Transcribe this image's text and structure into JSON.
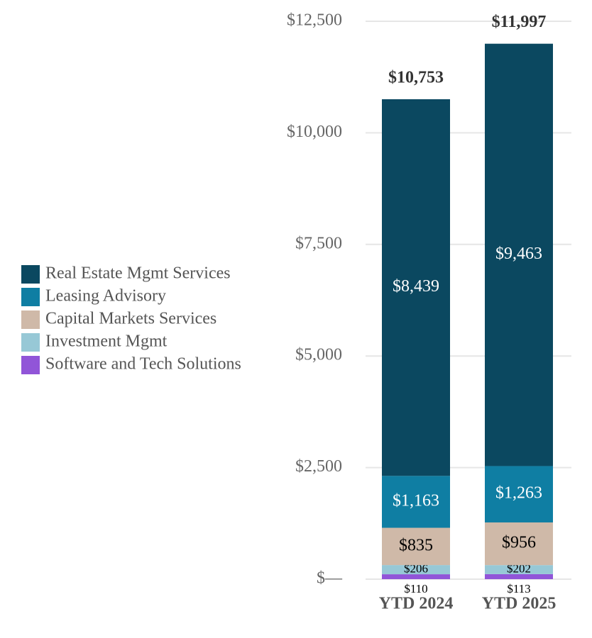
{
  "chart_data": {
    "type": "stacked_bar",
    "categories": [
      "YTD 2024",
      "YTD 2025"
    ],
    "series": [
      {
        "name": "Real Estate Mgmt Services",
        "color": "#0b4860",
        "label_color": "#ffffff",
        "values": [
          8439,
          9463
        ],
        "value_labels": [
          "$8,439",
          "$9,463"
        ]
      },
      {
        "name": "Leasing Advisory",
        "color": "#0f7ea3",
        "label_color": "#ffffff",
        "values": [
          1163,
          1263
        ],
        "value_labels": [
          "$1,163",
          "$1,263"
        ]
      },
      {
        "name": "Capital Markets Services",
        "color": "#cfb9a8",
        "label_color": "#000000",
        "values": [
          835,
          956
        ],
        "value_labels": [
          "$835",
          "$956"
        ]
      },
      {
        "name": "Investment Mgmt",
        "color": "#97c8d6",
        "label_color": "#000000",
        "values": [
          206,
          202
        ],
        "value_labels": [
          "$206",
          "$202"
        ]
      },
      {
        "name": "Software and Tech Solutions",
        "color": "#9155d8",
        "label_color": "#000000",
        "values": [
          110,
          113
        ],
        "value_labels": [
          "$110",
          "$113"
        ]
      }
    ],
    "totals": {
      "values": [
        10753,
        11997
      ],
      "value_labels": [
        "$10,753",
        "$11,997"
      ]
    },
    "ylim": [
      0,
      12500
    ],
    "yticks": [
      {
        "value": 0,
        "label": "$—"
      },
      {
        "value": 2500,
        "label": "$2,500"
      },
      {
        "value": 5000,
        "label": "$5,000"
      },
      {
        "value": 7500,
        "label": "$7,500"
      },
      {
        "value": 10000,
        "label": "$10,000"
      },
      {
        "value": 12500,
        "label": "$12,500"
      }
    ],
    "grid": true,
    "legend": "left"
  }
}
